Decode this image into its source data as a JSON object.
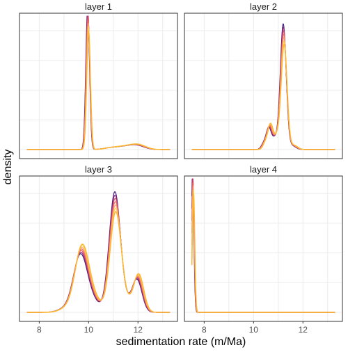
{
  "chart_data": {
    "type": "line",
    "xlabel": "sedimentation rate (m/Ma)",
    "ylabel": "density",
    "xlim": [
      7.2,
      13.6
    ],
    "x_ticks": [
      8,
      10,
      12
    ],
    "grid": true,
    "legend": "none",
    "colors": [
      "#3b0f70",
      "#8c2981",
      "#de4968",
      "#f66e5b",
      "#fe9f6d",
      "#fecf3e",
      "#fdb42f"
    ],
    "panels": [
      {
        "title": "layer 1",
        "ylim": [
          0,
          1.0
        ],
        "peaks": [
          {
            "center": 9.98,
            "width": 0.075,
            "height": 1.0
          },
          {
            "center": 11.5,
            "width": 0.35,
            "height": 0.022
          },
          {
            "center": 12.0,
            "width": 0.3,
            "height": 0.03
          },
          {
            "center": 10.9,
            "width": 0.3,
            "height": 0.012
          }
        ]
      },
      {
        "title": "layer 2",
        "ylim": [
          0,
          1.0
        ],
        "peaks": [
          {
            "center": 11.22,
            "width": 0.12,
            "height": 0.88
          },
          {
            "center": 10.65,
            "width": 0.1,
            "height": 0.17
          },
          {
            "center": 10.9,
            "width": 0.12,
            "height": 0.09
          },
          {
            "center": 10.45,
            "width": 0.1,
            "height": 0.05
          },
          {
            "center": 11.6,
            "width": 0.15,
            "height": 0.03
          }
        ]
      },
      {
        "title": "layer 3",
        "ylim": [
          0,
          1.0
        ],
        "peaks": [
          {
            "center": 11.08,
            "width": 0.23,
            "height": 0.84
          },
          {
            "center": 9.7,
            "width": 0.28,
            "height": 0.46
          },
          {
            "center": 12.0,
            "width": 0.2,
            "height": 0.26
          },
          {
            "center": 10.2,
            "width": 0.3,
            "height": 0.08
          },
          {
            "center": 9.1,
            "width": 0.3,
            "height": 0.03
          },
          {
            "center": 11.6,
            "width": 0.25,
            "height": 0.05
          }
        ]
      },
      {
        "title": "layer 4",
        "ylim": [
          0,
          1.0
        ],
        "peaks": [
          {
            "center": 7.55,
            "width": 0.05,
            "height": 1.0
          }
        ]
      }
    ]
  }
}
